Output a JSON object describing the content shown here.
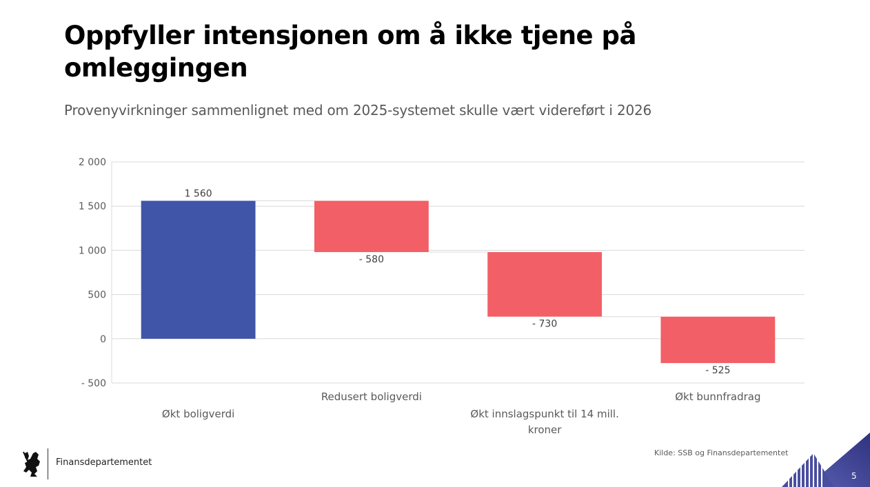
{
  "slide": {
    "title": "Oppfyller intensjonen om å ikke tjene på omleggingen",
    "subtitle": "Provenyvirkninger sammenlignet med om 2025-systemet skulle vært videreført i 2026",
    "source": "Kilde: SSB og Finansdepartementet",
    "department": "Finansdepartementet",
    "page_number": "5",
    "logo_icon": "norwegian-lion-coat-of-arms-icon",
    "colors": {
      "increase": "#4055a8",
      "decrease": "#f25f66",
      "corner_accent": "#3d3f8f"
    }
  },
  "chart_data": {
    "type": "bar",
    "subtype": "waterfall",
    "title": "",
    "xlabel": "",
    "ylabel": "",
    "ylim": [
      -500,
      2000
    ],
    "yticks": [
      2000,
      1500,
      1000,
      500,
      0,
      -500
    ],
    "ytick_labels": [
      "2 000",
      "1 500",
      "1 000",
      "500",
      "0",
      "- 500"
    ],
    "grid": true,
    "legend": "none",
    "categories": [
      [
        "Økt boligverdi"
      ],
      [
        "Redusert boligverdi"
      ],
      [
        "Økt innslagspunkt til 14 mill.",
        "kroner"
      ],
      [
        "Økt bunnfradrag"
      ]
    ],
    "values": [
      1560,
      -580,
      -730,
      -525
    ],
    "data_labels": [
      "1 560",
      "- 580",
      "- 730",
      "- 525"
    ],
    "series_colors": [
      "#4055a8",
      "#f25f66",
      "#f25f66",
      "#f25f66"
    ]
  }
}
